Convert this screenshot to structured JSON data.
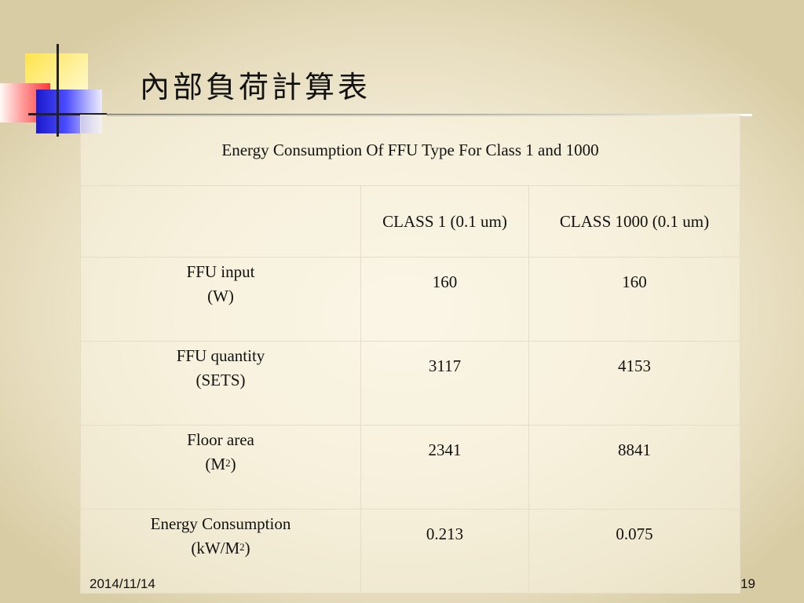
{
  "slide": {
    "title": "內部負荷計算表",
    "table": {
      "caption": "Energy Consumption Of FFU Type For Class 1 and 1000",
      "columns": [
        "",
        "CLASS 1  (0.1 um)",
        "CLASS 1000  (0.1 um)"
      ],
      "rows": [
        {
          "label": "FFU input",
          "unit": "(W)",
          "unit_sup": "",
          "unit_close": "",
          "class1": "160",
          "class1000": "160"
        },
        {
          "label": "FFU quantity",
          "unit": "(SETS)",
          "unit_sup": "",
          "unit_close": "",
          "class1": "3117",
          "class1000": "4153"
        },
        {
          "label": "Floor area",
          "unit": "(M",
          "unit_sup": "2",
          "unit_close": ")",
          "class1": "2341",
          "class1000": "8841"
        },
        {
          "label": "Energy Consumption",
          "unit": "(kW/M",
          "unit_sup": "2",
          "unit_close": ")",
          "class1": "0.213",
          "class1000": "0.075"
        }
      ]
    },
    "footer": {
      "date": "2014/11/14",
      "page_number": "19"
    }
  }
}
